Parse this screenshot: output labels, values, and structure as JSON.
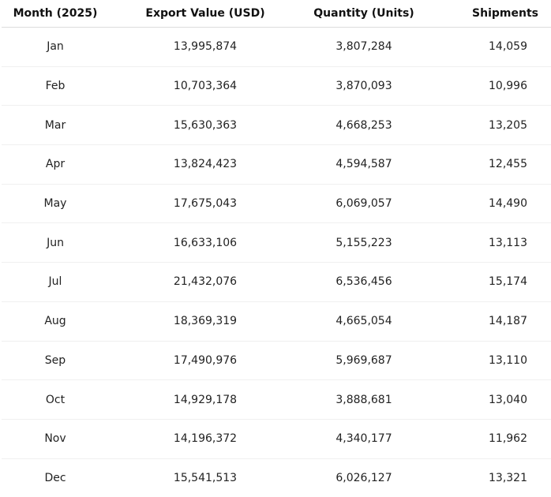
{
  "chart_data": {
    "type": "table",
    "columns": [
      "Month (2025)",
      "Export Value (USD)",
      "Quantity (Units)",
      "Shipments"
    ],
    "rows": [
      [
        "Jan",
        "13,995,874",
        "3,807,284",
        "14,059"
      ],
      [
        "Feb",
        "10,703,364",
        "3,870,093",
        "10,996"
      ],
      [
        "Mar",
        "15,630,363",
        "4,668,253",
        "13,205"
      ],
      [
        "Apr",
        "13,824,423",
        "4,594,587",
        "12,455"
      ],
      [
        "May",
        "17,675,043",
        "6,069,057",
        "14,490"
      ],
      [
        "Jun",
        "16,633,106",
        "5,155,223",
        "13,113"
      ],
      [
        "Jul",
        "21,432,076",
        "6,536,456",
        "15,174"
      ],
      [
        "Aug",
        "18,369,319",
        "4,665,054",
        "14,187"
      ],
      [
        "Sep",
        "17,490,976",
        "5,969,687",
        "13,110"
      ],
      [
        "Oct",
        "14,929,178",
        "3,888,681",
        "13,040"
      ],
      [
        "Nov",
        "14,196,372",
        "4,340,177",
        "11,962"
      ],
      [
        "Dec",
        "15,541,513",
        "6,026,127",
        "13,321"
      ]
    ]
  }
}
